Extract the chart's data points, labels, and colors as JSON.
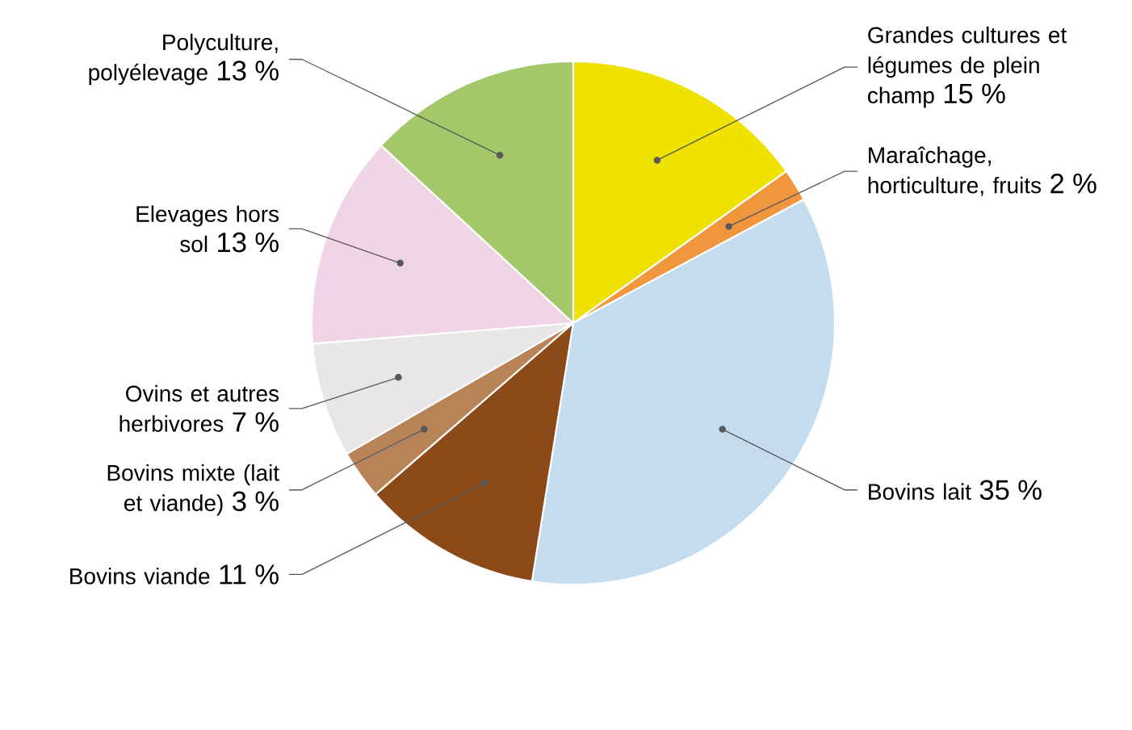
{
  "chart_data": {
    "type": "pie",
    "categories": [
      "Grandes cultures et légumes de plein champ",
      "Maraîchage, horticulture, fruits",
      "Bovins lait",
      "Bovins viande",
      "Bovins mixte (lait et viande)",
      "Ovins et autres herbivores",
      "Elevages hors sol",
      "Polyculture, polyélevage"
    ],
    "values": [
      15,
      2,
      35,
      11,
      3,
      7,
      13,
      13
    ],
    "value_labels": [
      "15 %",
      "2 %",
      "35 %",
      "11 %",
      "3 %",
      "7 %",
      "13 %",
      "13 %"
    ],
    "colors": [
      "#f0e200",
      "#f0963c",
      "#c5dcef",
      "#8b4a17",
      "#b98358",
      "#e8e6e6",
      "#f0d5e6",
      "#a3c86a"
    ]
  }
}
